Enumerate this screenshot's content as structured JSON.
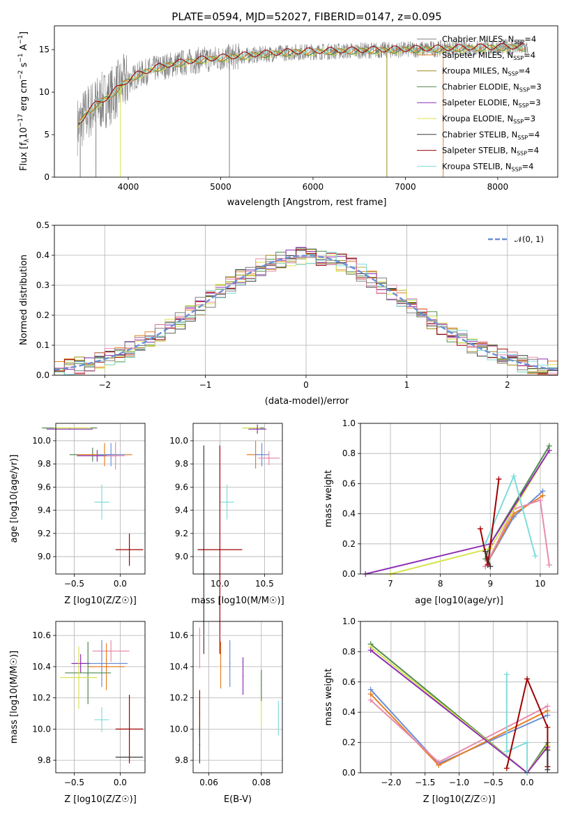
{
  "figure": {
    "title": "PLATE=0594, MJD=52027, FIBERID=0147, z=0.095"
  },
  "colors": {
    "grey": "#808080",
    "orange": "#e67e22",
    "olive": "#9c8c1a",
    "green": "#4f8a4f",
    "purple": "#8e2fb5",
    "yellow": "#d7e44d",
    "dark": "#3a3a3a",
    "darkred": "#a00000",
    "cyan": "#7edcdc",
    "blue": "#6a8fd8",
    "pink": "#e88bb0"
  },
  "legend": [
    {
      "label": "Chabrier MILES, N",
      "sub": "SSP",
      "suffix": "=4",
      "color": "#808080"
    },
    {
      "label": "Salpeter MILES, N",
      "sub": "SSP",
      "suffix": "=4",
      "color": "#e67e22"
    },
    {
      "label": "Kroupa MILES, N",
      "sub": "SSP",
      "suffix": "=4",
      "color": "#9c8c1a"
    },
    {
      "label": "Chabrier ELODIE, N",
      "sub": "SSP",
      "suffix": "=3",
      "color": "#4f8a4f"
    },
    {
      "label": "Salpeter ELODIE, N",
      "sub": "SSP",
      "suffix": "=3",
      "color": "#8e2fb5"
    },
    {
      "label": "Kroupa ELODIE, N",
      "sub": "SSP",
      "suffix": "=3",
      "color": "#d7e44d"
    },
    {
      "label": "Chabrier STELIB, N",
      "sub": "SSP",
      "suffix": "=4",
      "color": "#3a3a3a"
    },
    {
      "label": "Salpeter STELIB, N",
      "sub": "SSP",
      "suffix": "=4",
      "color": "#a00000"
    },
    {
      "label": "Kroupa STELIB, N",
      "sub": "SSP",
      "suffix": "=4",
      "color": "#7edcdc"
    }
  ],
  "chart_data": [
    {
      "type": "line",
      "panel": "spectrum",
      "title": "PLATE=0594, MJD=52027, FIBERID=0147, z=0.095",
      "xlabel": "wavelength [Angstrom, rest frame]",
      "ylabel": "Flux [f_λ 10^-17 erg cm^-2 s^-1 A^-1]",
      "xlim": [
        3200,
        8650
      ],
      "ylim": [
        0,
        17.8
      ],
      "xticks": [
        4000,
        5000,
        6000,
        7000,
        8000
      ],
      "yticks": [
        0,
        5,
        10,
        15
      ],
      "grid": false,
      "legend_position": "right",
      "envelope": {
        "x": [
          3450,
          3550,
          3650,
          3800,
          3950,
          4100,
          4300,
          4500,
          4800,
          5100,
          5400,
          5800,
          6200,
          6600,
          7000,
          7400,
          7800,
          8200,
          8300
        ],
        "y": [
          6.0,
          7.5,
          8.5,
          9.5,
          11.0,
          12.0,
          12.8,
          13.3,
          13.8,
          14.1,
          14.4,
          14.7,
          14.8,
          14.9,
          15.0,
          15.1,
          15.2,
          15.3,
          15.2
        ]
      }
    },
    {
      "type": "line",
      "panel": "residual-histogram",
      "xlabel": "(data-model)/error",
      "ylabel": "Normed distribution",
      "xlim": [
        -2.5,
        2.5
      ],
      "ylim": [
        0,
        0.5
      ],
      "xticks": [
        -2,
        -1,
        0,
        1,
        2
      ],
      "yticks": [
        0.0,
        0.1,
        0.2,
        0.3,
        0.4,
        0.5
      ],
      "grid": true,
      "legend": "𝒩(0, 1)",
      "legend_position": "top-right",
      "reference_curve": "normal(0,1)"
    },
    {
      "type": "scatter",
      "panel": "age-vs-Z",
      "xlabel": "Z [log10(Z/Z☉)]",
      "ylabel": "age [log10(age/yr)]",
      "xlim": [
        -0.7,
        0.27
      ],
      "ylim": [
        8.85,
        10.15
      ],
      "xticks": [
        -0.5,
        0.0
      ],
      "yticks": [
        9.0,
        9.2,
        9.4,
        9.6,
        9.8,
        10.0
      ],
      "grid": true,
      "points": [
        {
          "x": -0.55,
          "y": 10.11,
          "ex": 0.3,
          "ey": 0.0,
          "color": "#4f8a4f"
        },
        {
          "x": -0.52,
          "y": 10.11,
          "ex": 0.2,
          "ey": 0.0,
          "color": "#d7e44d"
        },
        {
          "x": -0.55,
          "y": 10.1,
          "ex": 0.25,
          "ey": 0.0,
          "color": "#8e2fb5"
        },
        {
          "x": -0.3,
          "y": 9.88,
          "ex": 0.25,
          "ey": 0.06,
          "color": "#4f8a4f"
        },
        {
          "x": -0.25,
          "y": 9.87,
          "ex": 0.22,
          "ey": 0.05,
          "color": "#8e2fb5"
        },
        {
          "x": -0.17,
          "y": 9.88,
          "ex": 0.3,
          "ey": 0.1,
          "color": "#e67e22"
        },
        {
          "x": -0.1,
          "y": 9.88,
          "ex": 0.15,
          "ey": 0.1,
          "color": "#6a8fd8"
        },
        {
          "x": -0.05,
          "y": 9.87,
          "ex": 0.1,
          "ey": 0.12,
          "color": "#e88bb0"
        },
        {
          "x": -0.2,
          "y": 9.47,
          "ex": 0.08,
          "ey": 0.15,
          "color": "#7edcdc"
        },
        {
          "x": 0.1,
          "y": 9.06,
          "ex": 0.15,
          "ey": 0.14,
          "color": "#a00000"
        }
      ]
    },
    {
      "type": "scatter",
      "panel": "age-vs-mass",
      "xlabel": "mass [log10(M/M☉)]",
      "ylabel": "",
      "xlim": [
        9.7,
        10.7
      ],
      "ylim": [
        8.85,
        10.15
      ],
      "xticks": [
        10.0,
        10.5
      ],
      "yticks": [
        9.0,
        9.2,
        9.4,
        9.6,
        9.8,
        10.0
      ],
      "grid": true,
      "points": [
        {
          "x": 10.38,
          "y": 10.11,
          "ex": 0.12,
          "ey": 0.0,
          "color": "#4f8a4f"
        },
        {
          "x": 10.35,
          "y": 10.11,
          "ex": 0.1,
          "ey": 0.0,
          "color": "#d7e44d"
        },
        {
          "x": 10.42,
          "y": 10.1,
          "ex": 0.1,
          "ey": 0.04,
          "color": "#8e2fb5"
        },
        {
          "x": 10.4,
          "y": 9.88,
          "ex": 0.1,
          "ey": 0.12,
          "color": "#e67e22"
        },
        {
          "x": 10.47,
          "y": 9.88,
          "ex": 0.08,
          "ey": 0.1,
          "color": "#6a8fd8"
        },
        {
          "x": 10.55,
          "y": 9.85,
          "ex": 0.12,
          "ey": 0.06,
          "color": "#e88bb0"
        },
        {
          "x": 10.08,
          "y": 9.47,
          "ex": 0.08,
          "ey": 0.15,
          "color": "#7edcdc"
        },
        {
          "x": 9.82,
          "y": 9.06,
          "ex": 0.0,
          "ey": 0.9,
          "color": "#3a3a3a"
        },
        {
          "x": 10.0,
          "y": 9.06,
          "ex": 0.25,
          "ey": 0.9,
          "color": "#a00000"
        }
      ]
    },
    {
      "type": "line",
      "panel": "mass-weight-vs-age",
      "xlabel": "age [log10(age/yr)]",
      "ylabel": "mass weight",
      "xlim": [
        6.4,
        10.35
      ],
      "ylim": [
        0,
        1
      ],
      "xticks": [
        7,
        8,
        9,
        10
      ],
      "yticks": [
        0.0,
        0.2,
        0.4,
        0.6,
        0.8,
        1.0
      ],
      "grid": true,
      "series": [
        {
          "color": "#6a8fd8",
          "x": [
            8.9,
            9.47,
            10.05
          ],
          "y": [
            0.05,
            0.38,
            0.55
          ]
        },
        {
          "color": "#e67e22",
          "x": [
            8.9,
            9.47,
            10.05
          ],
          "y": [
            0.05,
            0.4,
            0.52
          ]
        },
        {
          "color": "#e88bb0",
          "x": [
            8.9,
            9.47,
            10.0,
            10.18
          ],
          "y": [
            0.05,
            0.43,
            0.49,
            0.06
          ]
        },
        {
          "color": "#4f8a4f",
          "x": [
            8.9,
            9.0,
            10.18
          ],
          "y": [
            0.1,
            0.2,
            0.85
          ]
        },
        {
          "color": "#d7e44d",
          "x": [
            7.0,
            9.0,
            10.18
          ],
          "y": [
            0.0,
            0.17,
            0.82
          ]
        },
        {
          "color": "#8e2fb5",
          "x": [
            6.5,
            9.0,
            10.18
          ],
          "y": [
            0.0,
            0.2,
            0.82
          ]
        },
        {
          "color": "#7edcdc",
          "x": [
            8.9,
            9.47,
            9.9
          ],
          "y": [
            0.2,
            0.65,
            0.12
          ]
        },
        {
          "color": "#a00000",
          "x": [
            8.8,
            8.95,
            9.17
          ],
          "y": [
            0.3,
            0.06,
            0.63
          ]
        },
        {
          "color": "#3a3a3a",
          "x": [
            8.9,
            9.0
          ],
          "y": [
            0.15,
            0.05
          ]
        }
      ]
    },
    {
      "type": "scatter",
      "panel": "mass-vs-Z",
      "xlabel": "Z [log10(Z/Z☉)]",
      "ylabel": "mass [log10(M/M☉)]",
      "xlim": [
        -0.7,
        0.27
      ],
      "ylim": [
        9.72,
        10.69
      ],
      "xticks": [
        -0.5,
        0.0
      ],
      "yticks": [
        9.8,
        10.0,
        10.2,
        10.4,
        10.6
      ],
      "grid": true,
      "points": [
        {
          "x": -0.1,
          "y": 10.5,
          "ex": 0.2,
          "ey": 0.07,
          "color": "#e88bb0"
        },
        {
          "x": -0.2,
          "y": 10.42,
          "ex": 0.28,
          "ey": 0.15,
          "color": "#6a8fd8"
        },
        {
          "x": -0.15,
          "y": 10.4,
          "ex": 0.2,
          "ey": 0.15,
          "color": "#e67e22"
        },
        {
          "x": -0.43,
          "y": 10.42,
          "ex": 0.1,
          "ey": 0.06,
          "color": "#8e2fb5"
        },
        {
          "x": -0.35,
          "y": 10.36,
          "ex": 0.25,
          "ey": 0.2,
          "color": "#4f8a4f"
        },
        {
          "x": -0.45,
          "y": 10.33,
          "ex": 0.2,
          "ey": 0.2,
          "color": "#d7e44d"
        },
        {
          "x": -0.2,
          "y": 10.06,
          "ex": 0.08,
          "ey": 0.08,
          "color": "#7edcdc"
        },
        {
          "x": 0.1,
          "y": 10.0,
          "ex": 0.15,
          "ey": 0.22,
          "color": "#a00000"
        },
        {
          "x": 0.1,
          "y": 9.82,
          "ex": 0.15,
          "ey": 0.0,
          "color": "#3a3a3a"
        }
      ]
    },
    {
      "type": "scatter",
      "panel": "mass-vs-EBV",
      "xlabel": "E(B-V)",
      "ylabel": "",
      "xlim": [
        0.054,
        0.088
      ],
      "ylim": [
        9.72,
        10.69
      ],
      "xticks": [
        0.06,
        0.08
      ],
      "yticks": [
        9.8,
        10.0,
        10.2,
        10.4,
        10.6
      ],
      "grid": true,
      "points": [
        {
          "x": 0.0565,
          "y": 10.52,
          "ex": 0,
          "ey": 0.13,
          "color": "#e88bb0"
        },
        {
          "x": 0.0565,
          "y": 10.1,
          "ex": 0,
          "ey": 0.15,
          "color": "#a00000"
        },
        {
          "x": 0.0565,
          "y": 9.9,
          "ex": 0,
          "ey": 0.12,
          "color": "#3a3a3a"
        },
        {
          "x": 0.0645,
          "y": 10.41,
          "ex": 0,
          "ey": 0.15,
          "color": "#e67e22"
        },
        {
          "x": 0.068,
          "y": 10.42,
          "ex": 0,
          "ey": 0.15,
          "color": "#6a8fd8"
        },
        {
          "x": 0.073,
          "y": 10.34,
          "ex": 0,
          "ey": 0.12,
          "color": "#8e2fb5"
        },
        {
          "x": 0.08,
          "y": 10.2,
          "ex": 0,
          "ey": 0.18,
          "color": "#d7e44d"
        },
        {
          "x": 0.08,
          "y": 10.28,
          "ex": 0,
          "ey": 0.1,
          "color": "#4f8a4f"
        },
        {
          "x": 0.0865,
          "y": 10.07,
          "ex": 0,
          "ey": 0.11,
          "color": "#7edcdc"
        }
      ]
    },
    {
      "type": "line",
      "panel": "mass-weight-vs-Z",
      "xlabel": "Z [log10(Z/Z☉)]",
      "ylabel": "mass weight",
      "xlim": [
        -2.45,
        0.45
      ],
      "ylim": [
        0,
        1
      ],
      "xticks": [
        -2.0,
        -1.5,
        -1.0,
        -0.5,
        0.0
      ],
      "yticks": [
        0.0,
        0.2,
        0.4,
        0.6,
        0.8,
        1.0
      ],
      "grid": true,
      "series": [
        {
          "color": "#6a8fd8",
          "x": [
            -2.3,
            -1.3,
            0.3
          ],
          "y": [
            0.55,
            0.06,
            0.38
          ]
        },
        {
          "color": "#e67e22",
          "x": [
            -2.3,
            -1.3,
            0.3
          ],
          "y": [
            0.52,
            0.05,
            0.41
          ]
        },
        {
          "color": "#e88bb0",
          "x": [
            -2.3,
            -1.3,
            0.3
          ],
          "y": [
            0.48,
            0.07,
            0.44
          ]
        },
        {
          "color": "#4f8a4f",
          "x": [
            -2.3,
            0.0,
            0.3
          ],
          "y": [
            0.85,
            0.0,
            0.2
          ]
        },
        {
          "color": "#d7e44d",
          "x": [
            -2.3,
            0.0,
            0.3
          ],
          "y": [
            0.83,
            0.0,
            0.18
          ]
        },
        {
          "color": "#8e2fb5",
          "x": [
            -2.3,
            0.0,
            0.3
          ],
          "y": [
            0.81,
            0.0,
            0.17
          ]
        },
        {
          "color": "#7edcdc",
          "x": [
            -0.3,
            -0.3,
            0.0,
            0.0
          ],
          "y": [
            0.65,
            0.14,
            0.2,
            0.0
          ]
        },
        {
          "color": "#a00000",
          "x": [
            -0.3,
            0.0,
            0.3,
            0.3
          ],
          "y": [
            0.03,
            0.62,
            0.3,
            0.04
          ]
        },
        {
          "color": "#3a3a3a",
          "x": [
            0.3,
            0.3
          ],
          "y": [
            0.15,
            0.02
          ]
        }
      ]
    }
  ]
}
